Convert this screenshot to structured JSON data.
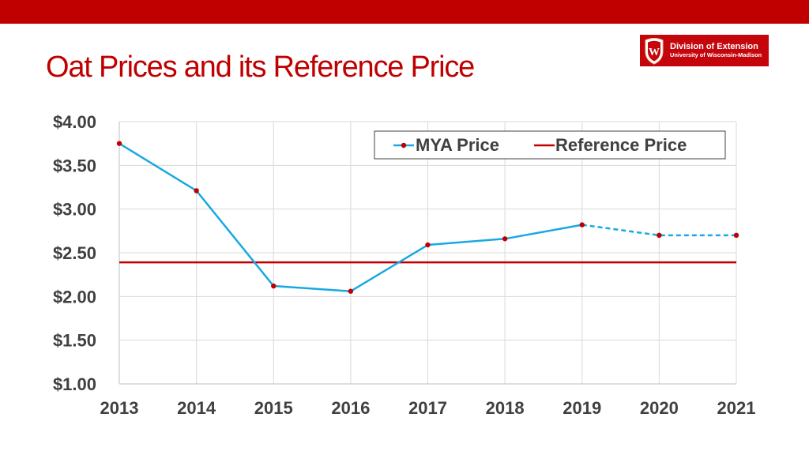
{
  "page": {
    "title": "Oat Prices and its Reference Price",
    "colors": {
      "top_bar": "#c00000",
      "title": "#c00000"
    }
  },
  "logo": {
    "line1": "Division of Extension",
    "line2": "University of Wisconsin-Madison",
    "crest_letter": "W",
    "background": "#c5050c"
  },
  "chart_data": {
    "type": "line",
    "title": "",
    "xlabel": "",
    "ylabel": "",
    "x": [
      2013,
      2014,
      2015,
      2016,
      2017,
      2018,
      2019,
      2020,
      2021
    ],
    "x_tick_labels": [
      "2013",
      "2014",
      "2015",
      "2016",
      "2017",
      "2018",
      "2019",
      "2020",
      "2021"
    ],
    "ylim": [
      1.0,
      4.0
    ],
    "y_ticks": [
      1.0,
      1.5,
      2.0,
      2.5,
      3.0,
      3.5,
      4.0
    ],
    "y_tick_labels": [
      "$1.00",
      "$1.50",
      "$2.00",
      "$2.50",
      "$3.00",
      "$3.50",
      "$4.00"
    ],
    "grid": true,
    "legend_position": "top-right",
    "series": [
      {
        "name": "MYA Price",
        "color": "#19a9e0",
        "marker_color": "#c00000",
        "values": [
          3.75,
          3.21,
          2.12,
          2.06,
          2.59,
          2.66,
          2.82,
          2.7,
          2.7
        ],
        "dashed_from_x": 2019
      },
      {
        "name": "Reference Price",
        "color": "#c00000",
        "values": [
          2.39,
          2.39,
          2.39,
          2.39,
          2.39,
          2.39,
          2.39,
          2.39,
          2.39
        ]
      }
    ]
  }
}
